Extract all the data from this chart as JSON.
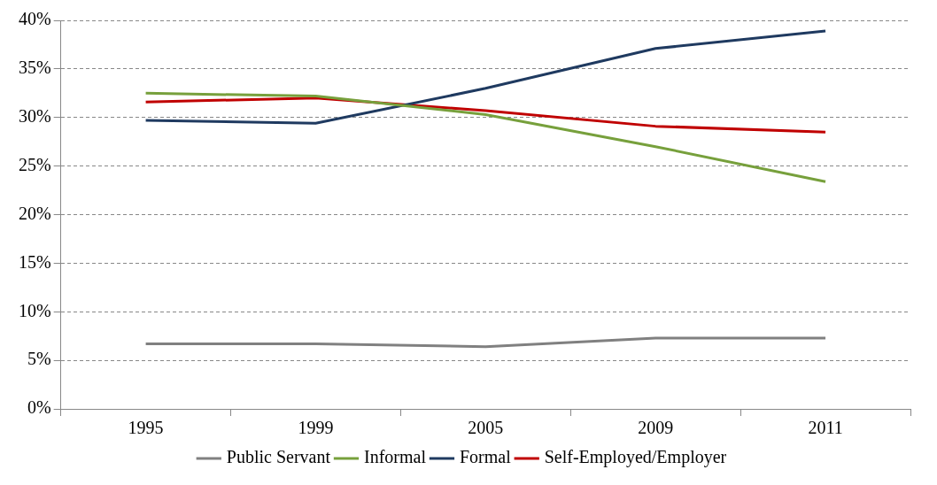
{
  "chart_data": {
    "type": "line",
    "categories": [
      "1995",
      "1999",
      "2005",
      "2009",
      "2011"
    ],
    "series": [
      {
        "name": "Public Servant",
        "color": "#808080",
        "values": [
          6.7,
          6.7,
          6.4,
          7.3,
          7.3
        ]
      },
      {
        "name": "Informal",
        "color": "#77a03c",
        "values": [
          32.5,
          32.2,
          30.3,
          27.0,
          23.4
        ]
      },
      {
        "name": "Formal",
        "color": "#1f3a60",
        "values": [
          29.7,
          29.4,
          33.0,
          37.1,
          38.9
        ]
      },
      {
        "name": "Self-Employed/Employer",
        "color": "#c00000",
        "values": [
          31.6,
          32.0,
          30.7,
          29.1,
          28.5
        ]
      }
    ],
    "ylim": [
      0,
      40
    ],
    "yticks": [
      {
        "value": 0,
        "label": "0%"
      },
      {
        "value": 5,
        "label": "5%"
      },
      {
        "value": 10,
        "label": "10%"
      },
      {
        "value": 15,
        "label": "15%"
      },
      {
        "value": 20,
        "label": "20%"
      },
      {
        "value": 25,
        "label": "25%"
      },
      {
        "value": 30,
        "label": "30%"
      },
      {
        "value": 35,
        "label": "35%"
      },
      {
        "value": 40,
        "label": "40%"
      }
    ],
    "grid": "y",
    "legend": "bottom",
    "marker": "none",
    "line_style": "solid"
  }
}
